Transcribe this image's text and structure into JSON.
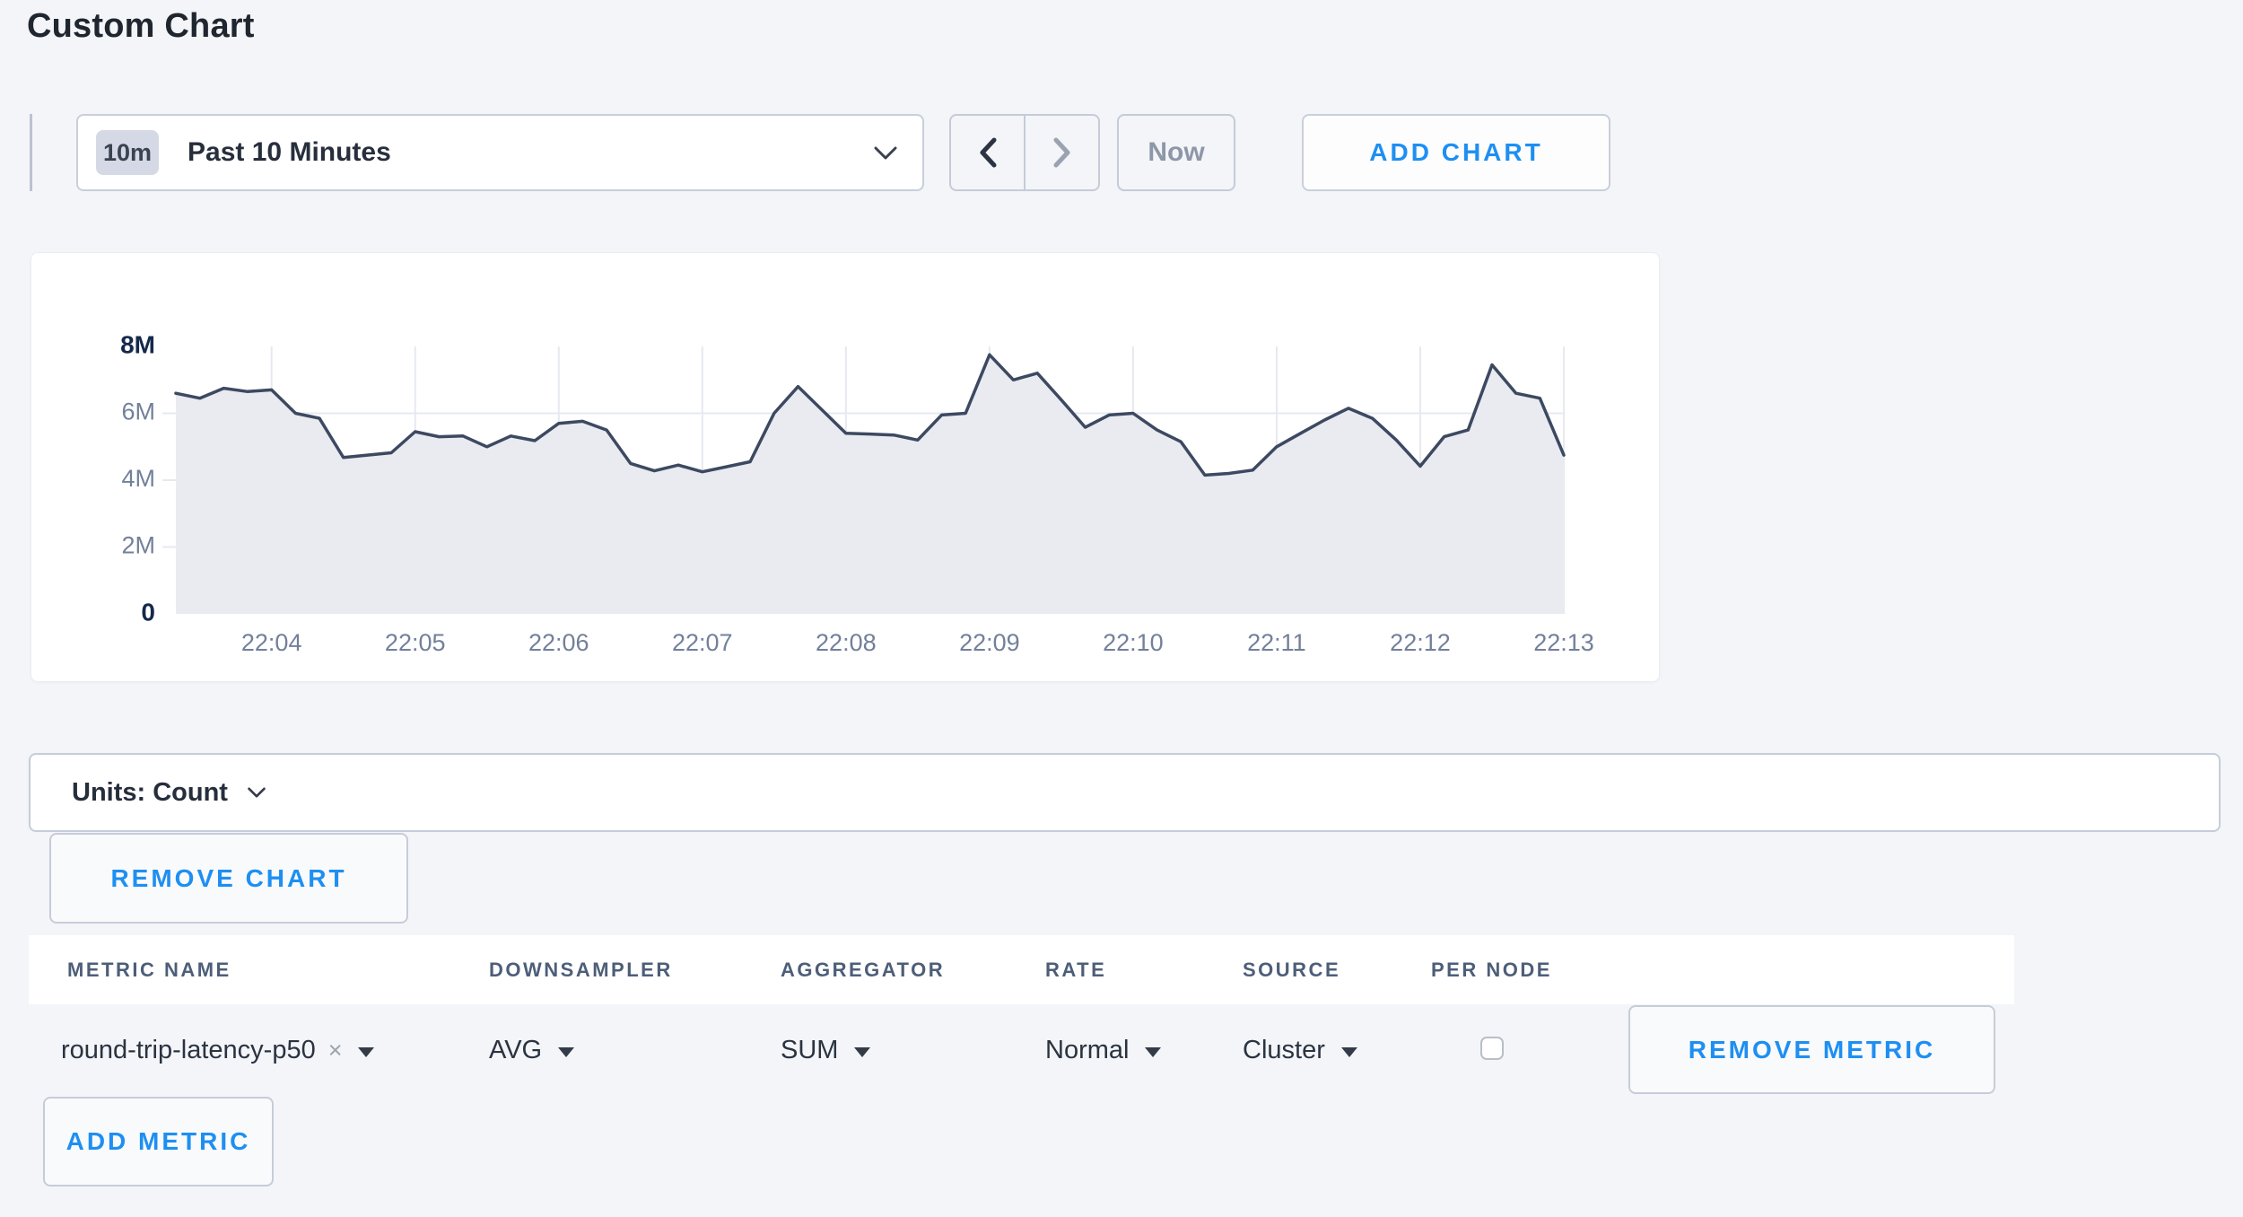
{
  "page": {
    "title": "Custom Chart"
  },
  "colors": {
    "accent_blue": "#1e8ff2",
    "page_bg": "#f3f5f8",
    "chart_line": "#3d4961",
    "chart_fill": "#e9ebf0",
    "gridline": "#e6e9f0",
    "axis_label_muted": "#72809a",
    "axis_label_strong": "#14294b"
  },
  "toolbar": {
    "time_range": {
      "badge": "10m",
      "label": "Past 10 Minutes"
    },
    "prev_icon": "chevron-left",
    "next_icon": "chevron-right",
    "now_label": "Now",
    "add_chart_label": "ADD CHART"
  },
  "units_bar": {
    "label": "Units: Count"
  },
  "remove_chart_label": "REMOVE CHART",
  "metrics_table": {
    "columns": [
      "METRIC NAME",
      "DOWNSAMPLER",
      "AGGREGATOR",
      "RATE",
      "SOURCE",
      "PER NODE"
    ],
    "clear_icon": "×",
    "rows": [
      {
        "metric_name": "round-trip-latency-p50",
        "downsampler": "AVG",
        "aggregator": "SUM",
        "rate": "Normal",
        "source": "Cluster",
        "per_node_checked": false,
        "remove_label": "REMOVE METRIC"
      }
    ],
    "add_metric_label": "ADD METRIC"
  },
  "chart_data": {
    "type": "area",
    "title": "",
    "xlabel": "",
    "ylabel": "count",
    "ylim_millions": [
      0,
      8
    ],
    "y_ticks": [
      {
        "value_millions": 0,
        "label": "0",
        "strong": true
      },
      {
        "value_millions": 2,
        "label": "2M",
        "strong": false
      },
      {
        "value_millions": 4,
        "label": "4M",
        "strong": false
      },
      {
        "value_millions": 6,
        "label": "6M",
        "strong": false
      },
      {
        "value_millions": 8,
        "label": "8M",
        "strong": true
      }
    ],
    "x_ticks": [
      "22:04",
      "22:05",
      "22:06",
      "22:07",
      "22:08",
      "22:09",
      "22:10",
      "22:11",
      "22:12",
      "22:13"
    ],
    "first_tick_point_index": 4,
    "points_per_tick": 6,
    "sample_interval_seconds": 10,
    "series": [
      {
        "name": "round-trip-latency-p50",
        "values_millions": [
          6.6,
          6.45,
          6.75,
          6.65,
          6.7,
          6.0,
          5.85,
          4.68,
          4.75,
          4.82,
          5.45,
          5.3,
          5.32,
          5.0,
          5.32,
          5.18,
          5.7,
          5.76,
          5.5,
          4.5,
          4.28,
          4.45,
          4.25,
          4.4,
          4.55,
          6.0,
          6.8,
          6.1,
          5.4,
          5.38,
          5.35,
          5.2,
          5.95,
          6.0,
          7.75,
          7.0,
          7.2,
          6.4,
          5.58,
          5.95,
          6.0,
          5.5,
          5.15,
          4.15,
          4.2,
          4.3,
          5.0,
          5.4,
          5.8,
          6.15,
          5.85,
          5.2,
          4.42,
          5.3,
          5.5,
          7.45,
          6.6,
          6.45,
          4.75
        ]
      }
    ],
    "legend": "off",
    "grid": "on"
  }
}
